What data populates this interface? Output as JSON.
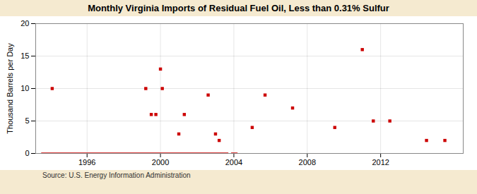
{
  "chart_data": {
    "type": "scatter",
    "title": "Monthly Virginia Imports of Residual Fuel Oil, Less than 0.31% Sulfur",
    "ylabel": "Thousand Barrels per Day",
    "annotations": [
      "Source: U.S. Energy Information Administration"
    ],
    "xlim": [
      1993.2,
      2016.5
    ],
    "xticks": [
      1996,
      2000,
      2004,
      2008,
      2012
    ],
    "ylim": [
      0,
      20
    ],
    "yticks": [
      0,
      5,
      10,
      15,
      20
    ],
    "grid": true,
    "series": [
      {
        "type": "line",
        "color": "#cc0000",
        "line_style": "solid",
        "x": [
          1993.5,
          2003.7
        ],
        "values": [
          0,
          0
        ]
      },
      {
        "type": "line",
        "color": "#cc0000",
        "line_style": "solid",
        "x": [
          2003.85,
          2004.2
        ],
        "values": [
          0,
          0
        ]
      },
      {
        "type": "scatter",
        "color": "#cc0000",
        "marker": "square",
        "x": [
          1994.1,
          1999.2,
          1999.5,
          1999.75,
          2000.0,
          2000.1,
          2001.0,
          2001.3,
          2002.6,
          2003.0,
          2003.2,
          2005.0,
          2005.7,
          2007.2,
          2009.5,
          2011.0,
          2011.6,
          2012.5,
          2014.5,
          2015.5
        ],
        "values": [
          10.0,
          10.0,
          6.0,
          6.0,
          13.0,
          10.0,
          3.0,
          6.0,
          9.0,
          3.0,
          2.0,
          4.0,
          9.0,
          7.0,
          4.0,
          16.0,
          5.0,
          5.0,
          2.0,
          2.0
        ]
      }
    ]
  }
}
